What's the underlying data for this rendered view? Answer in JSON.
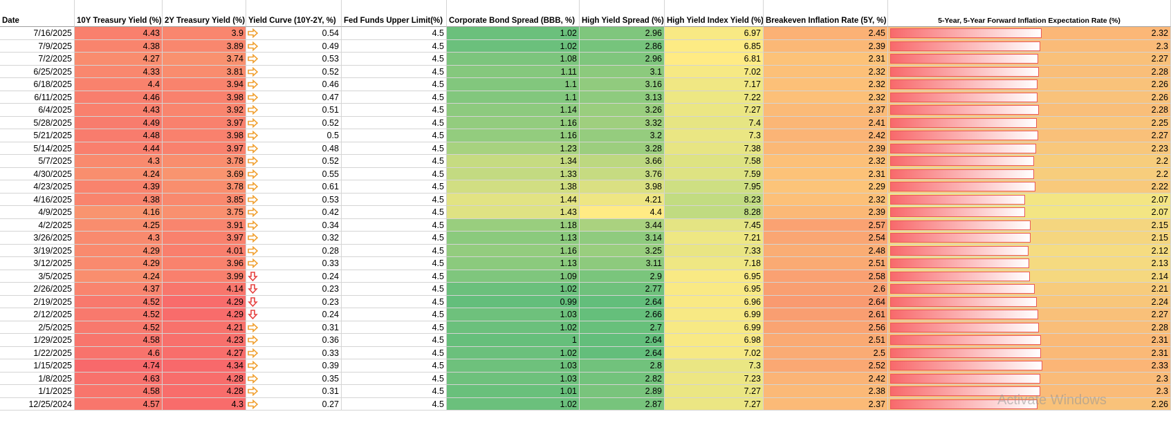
{
  "table": {
    "columns": [
      "Date",
      "10Y Treasury Yield (%)",
      "2Y Treasury Yield (%)",
      "Yield Curve (10Y-2Y, %)",
      "Fed Funds Upper Limit(%)",
      "Corporate Bond Spread (BBB, %)",
      "High Yield Spread (%)",
      "High Yield Index Yield (%)",
      "Breakeven Inflation Rate (5Y, %)",
      "5-Year, 5-Year Forward Inflation Expectation Rate (%)"
    ],
    "rows": [
      [
        "7/16/2025",
        4.43,
        3.9,
        0.54,
        4.5,
        1.02,
        2.96,
        6.97,
        2.45,
        2.32
      ],
      [
        "7/9/2025",
        4.38,
        3.89,
        0.49,
        4.5,
        1.02,
        2.86,
        6.85,
        2.39,
        2.3
      ],
      [
        "7/2/2025",
        4.27,
        3.74,
        0.53,
        4.5,
        1.08,
        2.96,
        6.81,
        2.31,
        2.27
      ],
      [
        "6/25/2025",
        4.33,
        3.81,
        0.52,
        4.5,
        1.11,
        3.1,
        7.02,
        2.32,
        2.28
      ],
      [
        "6/18/2025",
        4.4,
        3.94,
        0.46,
        4.5,
        1.1,
        3.16,
        7.17,
        2.32,
        2.26
      ],
      [
        "6/11/2025",
        4.46,
        3.98,
        0.47,
        4.5,
        1.1,
        3.13,
        7.22,
        2.32,
        2.26
      ],
      [
        "6/4/2025",
        4.43,
        3.92,
        0.51,
        4.5,
        1.14,
        3.26,
        7.27,
        2.37,
        2.28
      ],
      [
        "5/28/2025",
        4.49,
        3.97,
        0.52,
        4.5,
        1.16,
        3.32,
        7.4,
        2.41,
        2.25
      ],
      [
        "5/21/2025",
        4.48,
        3.98,
        0.5,
        4.5,
        1.16,
        3.2,
        7.3,
        2.42,
        2.27
      ],
      [
        "5/14/2025",
        4.44,
        3.97,
        0.48,
        4.5,
        1.23,
        3.28,
        7.38,
        2.39,
        2.23
      ],
      [
        "5/7/2025",
        4.3,
        3.78,
        0.52,
        4.5,
        1.34,
        3.66,
        7.58,
        2.32,
        2.2
      ],
      [
        "4/30/2025",
        4.24,
        3.69,
        0.55,
        4.5,
        1.33,
        3.76,
        7.59,
        2.31,
        2.2
      ],
      [
        "4/23/2025",
        4.39,
        3.78,
        0.61,
        4.5,
        1.38,
        3.98,
        7.95,
        2.29,
        2.22
      ],
      [
        "4/16/2025",
        4.38,
        3.85,
        0.53,
        4.5,
        1.44,
        4.21,
        8.23,
        2.32,
        2.07
      ],
      [
        "4/9/2025",
        4.16,
        3.75,
        0.42,
        4.5,
        1.43,
        4.4,
        8.28,
        2.39,
        2.07
      ],
      [
        "4/2/2025",
        4.25,
        3.91,
        0.34,
        4.5,
        1.18,
        3.44,
        7.45,
        2.57,
        2.15
      ],
      [
        "3/26/2025",
        4.3,
        3.97,
        0.32,
        4.5,
        1.13,
        3.14,
        7.21,
        2.54,
        2.15
      ],
      [
        "3/19/2025",
        4.29,
        4.01,
        0.28,
        4.5,
        1.16,
        3.25,
        7.33,
        2.48,
        2.12
      ],
      [
        "3/12/2025",
        4.29,
        3.96,
        0.33,
        4.5,
        1.13,
        3.11,
        7.18,
        2.51,
        2.13
      ],
      [
        "3/5/2025",
        4.24,
        3.99,
        0.24,
        4.5,
        1.09,
        2.9,
        6.95,
        2.58,
        2.14
      ],
      [
        "2/26/2025",
        4.37,
        4.14,
        0.23,
        4.5,
        1.02,
        2.77,
        6.95,
        2.6,
        2.21
      ],
      [
        "2/19/2025",
        4.52,
        4.29,
        0.23,
        4.5,
        0.99,
        2.64,
        6.96,
        2.64,
        2.24
      ],
      [
        "2/12/2025",
        4.52,
        4.29,
        0.24,
        4.5,
        1.03,
        2.66,
        6.99,
        2.61,
        2.27
      ],
      [
        "2/5/2025",
        4.52,
        4.21,
        0.31,
        4.5,
        1.02,
        2.7,
        6.99,
        2.56,
        2.28
      ],
      [
        "1/29/2025",
        4.58,
        4.23,
        0.36,
        4.5,
        1,
        2.64,
        6.98,
        2.51,
        2.31
      ],
      [
        "1/22/2025",
        4.6,
        4.27,
        0.33,
        4.5,
        1.02,
        2.64,
        7.02,
        2.5,
        2.31
      ],
      [
        "1/15/2025",
        4.74,
        4.34,
        0.39,
        4.5,
        1.03,
        2.8,
        7.3,
        2.52,
        2.33
      ],
      [
        "1/8/2025",
        4.63,
        4.28,
        0.35,
        4.5,
        1.03,
        2.82,
        7.23,
        2.42,
        2.3
      ],
      [
        "1/1/2025",
        4.58,
        4.28,
        0.31,
        4.5,
        1.01,
        2.89,
        7.27,
        2.38,
        2.3
      ],
      [
        "12/25/2024",
        4.57,
        4.3,
        0.27,
        4.5,
        1.02,
        2.87,
        7.27,
        2.37,
        2.26
      ]
    ]
  },
  "watermark": "Activate Windows"
}
